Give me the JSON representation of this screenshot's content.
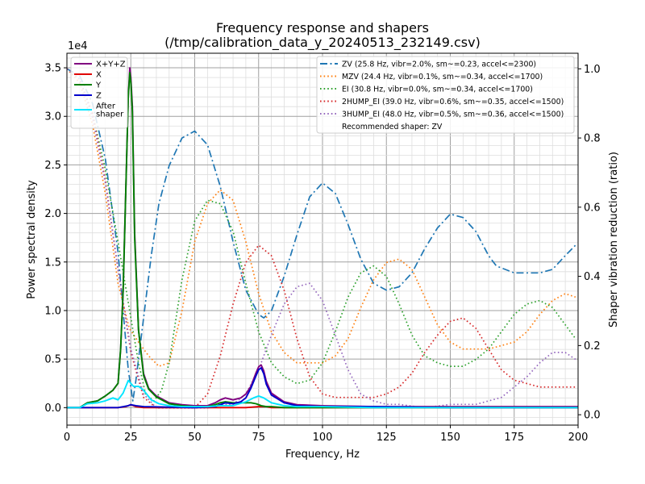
{
  "chart_data": {
    "type": "line",
    "title_line1": "Frequency response and shapers",
    "title_line2": "(/tmp/calibration_data_y_20240513_232149.csv)",
    "xlabel": "Frequency, Hz",
    "ylabel_left": "Power spectral density",
    "ylabel_right": "Shaper vibration reduction (ratio)",
    "left_offset_label": "1e4",
    "xlim": [
      0,
      200
    ],
    "ylim_left": [
      -0.18,
      3.65
    ],
    "ylim_right": [
      -0.03,
      1.045
    ],
    "x_ticks": [
      0,
      25,
      50,
      75,
      100,
      125,
      150,
      175,
      200
    ],
    "x_tick_labels": [
      "0",
      "25",
      "50",
      "75",
      "100",
      "125",
      "150",
      "175",
      "200"
    ],
    "y_left_ticks": [
      0,
      0.5,
      1.0,
      1.5,
      2.0,
      2.5,
      3.0,
      3.5
    ],
    "y_left_tick_labels": [
      "0.0",
      "0.5",
      "1.0",
      "1.5",
      "2.0",
      "2.5",
      "3.0",
      "3.5"
    ],
    "y_right_ticks": [
      0,
      0.2,
      0.4,
      0.6,
      0.8,
      1.0
    ],
    "y_right_tick_labels": [
      "0.0",
      "0.2",
      "0.4",
      "0.6",
      "0.8",
      "1.0"
    ],
    "grid": true,
    "legend_left_position": "top-left",
    "legend_right_position": "top-right",
    "recommended_text": "Recommended shaper: ZV",
    "psd_series": [
      {
        "name": "X+Y+Z",
        "color": "#800080",
        "style": "solid",
        "x": [
          0,
          5,
          8,
          12,
          15,
          18,
          20,
          21,
          22,
          23,
          24,
          24.6,
          25,
          25.6,
          26.5,
          28,
          30,
          32,
          35,
          40,
          45,
          50,
          55,
          58,
          60,
          62,
          65,
          68,
          70,
          72,
          74,
          75,
          76,
          77,
          78,
          80,
          85,
          90,
          100,
          120,
          150,
          200
        ],
        "y": [
          0,
          0,
          0.05,
          0.07,
          0.12,
          0.18,
          0.25,
          0.6,
          1.2,
          2.2,
          3.2,
          3.5,
          3.4,
          3.1,
          1.8,
          0.8,
          0.35,
          0.2,
          0.12,
          0.05,
          0.03,
          0.02,
          0.02,
          0.05,
          0.08,
          0.1,
          0.08,
          0.1,
          0.14,
          0.22,
          0.36,
          0.42,
          0.44,
          0.38,
          0.27,
          0.15,
          0.06,
          0.03,
          0.02,
          0.01,
          0.01,
          0.01
        ]
      },
      {
        "name": "X",
        "color": "#e00000",
        "style": "solid",
        "x": [
          0,
          20,
          23,
          25,
          27,
          30,
          60,
          70,
          75,
          78,
          80,
          100,
          200
        ],
        "y": [
          0,
          0,
          0.01,
          0.03,
          0.01,
          0,
          0,
          0,
          0.01,
          0.01,
          0,
          0,
          0
        ]
      },
      {
        "name": "Y",
        "color": "#008000",
        "style": "solid",
        "x": [
          0,
          5,
          8,
          12,
          15,
          18,
          20,
          21,
          22,
          23,
          24,
          24.6,
          25,
          25.6,
          26.5,
          28,
          30,
          32,
          35,
          40,
          45,
          50,
          55,
          58,
          60,
          62,
          65,
          68,
          70,
          72,
          74,
          75,
          76,
          78,
          80,
          85,
          90,
          100,
          120,
          150,
          200
        ],
        "y": [
          0,
          0,
          0.05,
          0.07,
          0.12,
          0.18,
          0.25,
          0.6,
          1.2,
          2.2,
          3.2,
          3.45,
          3.35,
          3.05,
          1.75,
          0.8,
          0.33,
          0.19,
          0.11,
          0.04,
          0.02,
          0.01,
          0.01,
          0.03,
          0.05,
          0.06,
          0.05,
          0.05,
          0.05,
          0.05,
          0.04,
          0.03,
          0.02,
          0.01,
          0.01,
          0,
          0,
          0,
          0,
          0,
          0
        ]
      },
      {
        "name": "Z",
        "color": "#0000cc",
        "style": "solid",
        "x": [
          0,
          20,
          24,
          25,
          27,
          30,
          50,
          58,
          60,
          62,
          65,
          68,
          70,
          72,
          74,
          75,
          76,
          77,
          78,
          80,
          85,
          90,
          100,
          120,
          150,
          200
        ],
        "y": [
          0,
          0,
          0.02,
          0.03,
          0.02,
          0.01,
          0,
          0.01,
          0.03,
          0.05,
          0.04,
          0.06,
          0.1,
          0.2,
          0.33,
          0.39,
          0.41,
          0.35,
          0.24,
          0.13,
          0.05,
          0.02,
          0.01,
          0.01,
          0,
          0
        ]
      },
      {
        "name": "After\nshaper",
        "color": "#00e5ff",
        "style": "solid",
        "x": [
          0,
          5,
          8,
          12,
          15,
          18,
          20,
          22,
          24,
          25,
          26,
          28,
          30,
          33,
          36,
          40,
          45,
          50,
          55,
          60,
          65,
          70,
          73,
          75,
          77,
          80,
          85,
          90,
          100,
          120,
          150,
          200
        ],
        "y": [
          0,
          0,
          0.04,
          0.05,
          0.07,
          0.1,
          0.08,
          0.15,
          0.28,
          0.25,
          0.22,
          0.22,
          0.18,
          0.08,
          0.04,
          0.02,
          0.01,
          0.01,
          0.01,
          0.02,
          0.02,
          0.06,
          0.1,
          0.12,
          0.1,
          0.05,
          0.02,
          0.01,
          0.01,
          0,
          0,
          0
        ]
      }
    ],
    "shaper_series": [
      {
        "name": "ZV (25.8 Hz, vibr=2.0%, sm~=0.23, accel<=2300)",
        "color": "#1f77b4",
        "style": "dashdot",
        "x": [
          0,
          5,
          10,
          15,
          20,
          22,
          24,
          25.8,
          27,
          30,
          33,
          36,
          40,
          45,
          50,
          55,
          60,
          65,
          70,
          75,
          77,
          80,
          85,
          90,
          95,
          100,
          105,
          110,
          115,
          120,
          125,
          130,
          135,
          140,
          145,
          150,
          155,
          160,
          165,
          168,
          175,
          180,
          185,
          190,
          195,
          199
        ],
        "y": [
          1.0,
          0.98,
          0.9,
          0.74,
          0.47,
          0.3,
          0.13,
          0.04,
          0.1,
          0.28,
          0.46,
          0.61,
          0.72,
          0.8,
          0.82,
          0.78,
          0.66,
          0.5,
          0.36,
          0.29,
          0.28,
          0.3,
          0.4,
          0.52,
          0.63,
          0.67,
          0.64,
          0.55,
          0.45,
          0.38,
          0.36,
          0.37,
          0.41,
          0.48,
          0.54,
          0.58,
          0.57,
          0.53,
          0.46,
          0.43,
          0.41,
          0.41,
          0.41,
          0.42,
          0.46,
          0.49
        ]
      },
      {
        "name": "MZV (24.4 Hz, vibr=0.1%, sm~=0.34, accel<=1700)",
        "color": "#ff7f0e",
        "style": "dotted",
        "x": [
          0,
          5,
          10,
          15,
          20,
          24.4,
          28,
          32,
          36,
          40,
          45,
          50,
          55,
          60,
          65,
          70,
          75,
          80,
          85,
          90,
          95,
          100,
          105,
          110,
          115,
          120,
          125,
          130,
          135,
          140,
          145,
          150,
          155,
          160,
          165,
          170,
          175,
          180,
          185,
          190,
          195,
          199
        ],
        "y": [
          1.0,
          0.96,
          0.84,
          0.64,
          0.38,
          0.25,
          0.21,
          0.17,
          0.14,
          0.15,
          0.3,
          0.5,
          0.61,
          0.65,
          0.62,
          0.5,
          0.35,
          0.24,
          0.18,
          0.15,
          0.15,
          0.15,
          0.17,
          0.22,
          0.31,
          0.39,
          0.44,
          0.45,
          0.42,
          0.34,
          0.26,
          0.21,
          0.19,
          0.19,
          0.19,
          0.2,
          0.21,
          0.24,
          0.29,
          0.33,
          0.35,
          0.34
        ]
      },
      {
        "name": "EI (30.8 Hz, vibr=0.0%, sm~=0.34, accel<=1700)",
        "color": "#2ca02c",
        "style": "dotted",
        "x": [
          0,
          5,
          10,
          15,
          20,
          25,
          28,
          30.8,
          34,
          37,
          40,
          45,
          50,
          55,
          60,
          65,
          70,
          75,
          80,
          85,
          90,
          95,
          100,
          105,
          110,
          115,
          120,
          125,
          130,
          135,
          140,
          145,
          150,
          155,
          160,
          165,
          170,
          175,
          180,
          185,
          190,
          195,
          199
        ],
        "y": [
          1.0,
          0.97,
          0.87,
          0.71,
          0.5,
          0.28,
          0.15,
          0.06,
          0.04,
          0.07,
          0.15,
          0.39,
          0.56,
          0.62,
          0.61,
          0.53,
          0.38,
          0.24,
          0.15,
          0.11,
          0.09,
          0.1,
          0.15,
          0.24,
          0.34,
          0.41,
          0.43,
          0.4,
          0.32,
          0.23,
          0.17,
          0.15,
          0.14,
          0.14,
          0.16,
          0.19,
          0.24,
          0.29,
          0.32,
          0.33,
          0.31,
          0.26,
          0.22
        ]
      },
      {
        "name": "2HUMP_EI (39.0 Hz, vibr=0.6%, sm~=0.35, accel<=1500)",
        "color": "#d62728",
        "style": "dotted",
        "x": [
          0,
          5,
          10,
          15,
          20,
          25,
          30,
          35,
          39,
          45,
          50,
          55,
          60,
          65,
          70,
          75,
          80,
          85,
          90,
          95,
          100,
          105,
          110,
          115,
          120,
          125,
          130,
          135,
          140,
          145,
          150,
          155,
          160,
          165,
          170,
          175,
          180,
          185,
          190,
          195,
          199
        ],
        "y": [
          1.0,
          0.97,
          0.87,
          0.68,
          0.42,
          0.18,
          0.05,
          0.02,
          0.02,
          0.02,
          0.02,
          0.06,
          0.17,
          0.32,
          0.44,
          0.49,
          0.46,
          0.36,
          0.22,
          0.11,
          0.06,
          0.05,
          0.05,
          0.05,
          0.05,
          0.06,
          0.08,
          0.12,
          0.18,
          0.23,
          0.27,
          0.28,
          0.25,
          0.19,
          0.13,
          0.1,
          0.09,
          0.08,
          0.08,
          0.08,
          0.08
        ]
      },
      {
        "name": "3HUMP_EI (48.0 Hz, vibr=0.5%, sm~=0.36, accel<=1500)",
        "color": "#9467bd",
        "style": "dotted",
        "x": [
          0,
          5,
          10,
          15,
          20,
          25,
          30,
          35,
          40,
          48,
          55,
          60,
          65,
          70,
          75,
          80,
          85,
          90,
          95,
          100,
          105,
          110,
          115,
          120,
          125,
          130,
          140,
          150,
          155,
          160,
          165,
          170,
          175,
          180,
          185,
          190,
          195,
          199
        ],
        "y": [
          1.0,
          0.97,
          0.86,
          0.67,
          0.42,
          0.19,
          0.06,
          0.02,
          0.02,
          0.02,
          0.02,
          0.03,
          0.03,
          0.06,
          0.13,
          0.23,
          0.32,
          0.37,
          0.38,
          0.33,
          0.23,
          0.13,
          0.06,
          0.04,
          0.03,
          0.03,
          0.02,
          0.03,
          0.03,
          0.03,
          0.04,
          0.05,
          0.08,
          0.11,
          0.15,
          0.18,
          0.18,
          0.16
        ]
      }
    ]
  }
}
